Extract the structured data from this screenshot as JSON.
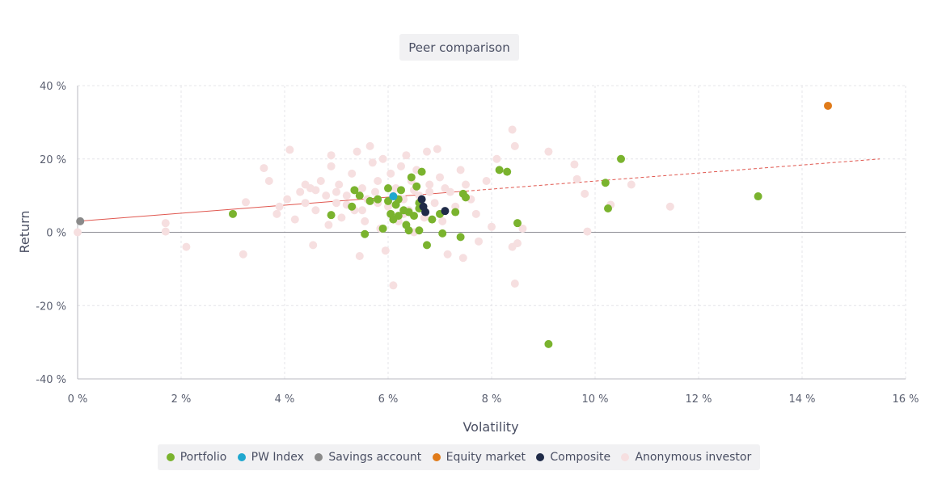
{
  "chart_data": {
    "type": "scatter",
    "title": "Peer comparison",
    "xlabel": "Volatility",
    "ylabel": "Return",
    "xlim": [
      0,
      16
    ],
    "ylim": [
      -40,
      40
    ],
    "x_ticks": [
      "0 %",
      "2 %",
      "4 %",
      "6 %",
      "8 %",
      "10 %",
      "12 %",
      "14 %",
      "16 %"
    ],
    "y_ticks": [
      "40 %",
      "20 %",
      "0 %",
      "-20 %",
      "-40 %"
    ],
    "grid": true,
    "legend_position": "bottom",
    "trend_line": {
      "x0": 0,
      "y0": 3,
      "x1": 15.5,
      "y1": 20,
      "color": "#e0574f"
    },
    "series": [
      {
        "name": "Anonymous investor",
        "color": "#f6dfe0",
        "points": [
          [
            0,
            0
          ],
          [
            1.7,
            2.5
          ],
          [
            1.7,
            0.2
          ],
          [
            2.1,
            -4
          ],
          [
            3.2,
            -6
          ],
          [
            3.25,
            8.2
          ],
          [
            3.6,
            17.5
          ],
          [
            3.7,
            14
          ],
          [
            3.85,
            5
          ],
          [
            3.9,
            7
          ],
          [
            4.05,
            9
          ],
          [
            4.1,
            22.5
          ],
          [
            4.2,
            3.5
          ],
          [
            4.3,
            11
          ],
          [
            4.4,
            8
          ],
          [
            4.5,
            12
          ],
          [
            4.55,
            -3.5
          ],
          [
            4.6,
            6
          ],
          [
            4.7,
            14
          ],
          [
            4.8,
            10
          ],
          [
            4.85,
            2
          ],
          [
            4.9,
            21
          ],
          [
            4.9,
            18
          ],
          [
            5.0,
            8
          ],
          [
            5.05,
            13
          ],
          [
            5.1,
            4
          ],
          [
            5.2,
            10
          ],
          [
            5.3,
            16
          ],
          [
            5.35,
            6
          ],
          [
            5.4,
            22
          ],
          [
            5.45,
            -6.5
          ],
          [
            5.5,
            12
          ],
          [
            5.55,
            3
          ],
          [
            5.6,
            9
          ],
          [
            5.65,
            23.5
          ],
          [
            5.7,
            19
          ],
          [
            5.75,
            11
          ],
          [
            5.8,
            14
          ],
          [
            5.85,
            1
          ],
          [
            5.9,
            20
          ],
          [
            5.95,
            -5
          ],
          [
            6.0,
            7
          ],
          [
            6.05,
            16
          ],
          [
            6.1,
            -14.5
          ],
          [
            6.15,
            12
          ],
          [
            6.2,
            3
          ],
          [
            6.25,
            18
          ],
          [
            6.3,
            9
          ],
          [
            6.35,
            21
          ],
          [
            6.4,
            6
          ],
          [
            6.45,
            14
          ],
          [
            6.5,
            0
          ],
          [
            6.55,
            17
          ],
          [
            6.6,
            10
          ],
          [
            6.7,
            4
          ],
          [
            6.75,
            22
          ],
          [
            6.8,
            13
          ],
          [
            6.9,
            8
          ],
          [
            6.95,
            22.7
          ],
          [
            7.0,
            15
          ],
          [
            7.05,
            3
          ],
          [
            7.15,
            -6
          ],
          [
            7.2,
            11
          ],
          [
            7.3,
            7
          ],
          [
            7.4,
            17
          ],
          [
            7.45,
            -7
          ],
          [
            7.5,
            13
          ],
          [
            7.6,
            9
          ],
          [
            7.7,
            5
          ],
          [
            7.75,
            -2.5
          ],
          [
            7.9,
            14
          ],
          [
            8.0,
            1.5
          ],
          [
            8.1,
            20
          ],
          [
            8.4,
            28
          ],
          [
            8.45,
            23.5
          ],
          [
            8.4,
            -4
          ],
          [
            8.45,
            -14
          ],
          [
            8.5,
            -3
          ],
          [
            8.6,
            1
          ],
          [
            9.1,
            22
          ],
          [
            9.6,
            18.5
          ],
          [
            9.65,
            14.5
          ],
          [
            9.8,
            10.5
          ],
          [
            9.85,
            0.2
          ],
          [
            10.3,
            7.5
          ],
          [
            10.7,
            13
          ],
          [
            11.45,
            7
          ],
          [
            4.4,
            13
          ],
          [
            4.6,
            11.5
          ],
          [
            5.0,
            11
          ],
          [
            5.2,
            7.5
          ],
          [
            5.5,
            6
          ],
          [
            5.8,
            8
          ],
          [
            6.1,
            10
          ],
          [
            6.3,
            5
          ],
          [
            6.5,
            11.5
          ],
          [
            6.8,
            11
          ],
          [
            7.1,
            12
          ]
        ]
      },
      {
        "name": "Portfolio",
        "color": "#7ab32e",
        "points": [
          [
            3.0,
            5
          ],
          [
            4.9,
            4.7
          ],
          [
            5.3,
            7
          ],
          [
            5.35,
            11.5
          ],
          [
            5.45,
            10
          ],
          [
            5.55,
            -0.5
          ],
          [
            5.65,
            8.5
          ],
          [
            5.8,
            9
          ],
          [
            5.9,
            1
          ],
          [
            6.0,
            12
          ],
          [
            6.05,
            5
          ],
          [
            6.1,
            3.5
          ],
          [
            6.15,
            7.5
          ],
          [
            6.2,
            9
          ],
          [
            6.25,
            11.5
          ],
          [
            6.3,
            6
          ],
          [
            6.35,
            2
          ],
          [
            6.4,
            0.5
          ],
          [
            6.45,
            15
          ],
          [
            6.5,
            4.5
          ],
          [
            6.55,
            12.5
          ],
          [
            6.6,
            8
          ],
          [
            6.6,
            0.5
          ],
          [
            6.65,
            16.5
          ],
          [
            6.75,
            -3.5
          ],
          [
            6.85,
            3.5
          ],
          [
            7.0,
            5
          ],
          [
            7.05,
            -0.3
          ],
          [
            7.3,
            5.5
          ],
          [
            7.4,
            -1.3
          ],
          [
            7.45,
            10.5
          ],
          [
            7.5,
            9.5
          ],
          [
            8.15,
            17
          ],
          [
            8.3,
            16.5
          ],
          [
            8.5,
            2.5
          ],
          [
            9.1,
            -30.5
          ],
          [
            10.2,
            13.5
          ],
          [
            10.25,
            6.5
          ],
          [
            10.5,
            20
          ],
          [
            13.15,
            9.8
          ],
          [
            6.0,
            8.5
          ],
          [
            6.2,
            4.5
          ],
          [
            6.4,
            5.5
          ],
          [
            6.6,
            6.5
          ]
        ]
      },
      {
        "name": "PW Index",
        "color": "#1fa7cf",
        "points": [
          [
            6.1,
            9.8
          ]
        ]
      },
      {
        "name": "Savings account",
        "color": "#8a8a8a",
        "points": [
          [
            0.05,
            3
          ]
        ]
      },
      {
        "name": "Equity market",
        "color": "#e07b1a",
        "points": [
          [
            14.5,
            34.5
          ]
        ]
      },
      {
        "name": "Composite",
        "color": "#1f2b48",
        "points": [
          [
            6.65,
            9
          ],
          [
            6.68,
            7
          ],
          [
            6.72,
            5.5
          ],
          [
            7.1,
            5.8
          ]
        ]
      }
    ],
    "legend_order": [
      "Portfolio",
      "PW Index",
      "Savings account",
      "Equity market",
      "Composite",
      "Anonymous investor"
    ]
  }
}
